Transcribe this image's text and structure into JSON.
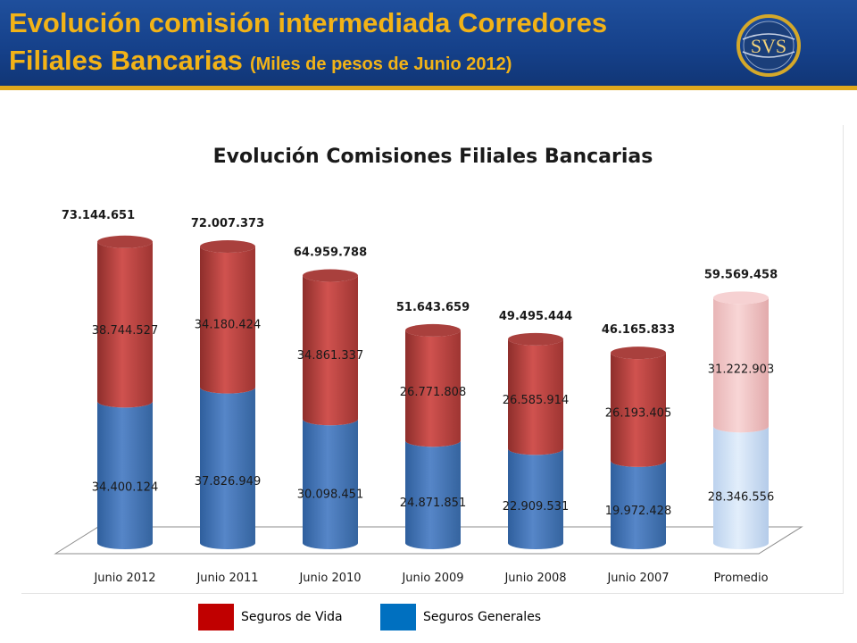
{
  "header": {
    "title_line1": "Evolución comisión intermediada Corredores",
    "title_line2": "Filiales Bancarias",
    "title_sub": "(Miles de pesos de Junio 2012)",
    "logo_text": "SVS"
  },
  "colors": {
    "header_bg": "#174490",
    "title": "#f2b317",
    "vida": "#c0504d",
    "generales": "#4f81bd",
    "vida_promedio": "#f2c3c4",
    "generales_promedio": "#cfe0f5"
  },
  "legend": [
    {
      "label": "Seguros de Vida",
      "color": "#c00000"
    },
    {
      "label": "Seguros Generales",
      "color": "#0070c0"
    }
  ],
  "chart_data": {
    "type": "bar",
    "stacked": true,
    "title": "Evolución Comisiones Filiales Bancarias",
    "categories": [
      "Junio 2012",
      "Junio 2011",
      "Junio 2010",
      "Junio 2009",
      "Junio 2008",
      "Junio 2007",
      "Promedio"
    ],
    "series": [
      {
        "name": "Seguros Generales",
        "values": [
          34400124,
          37826949,
          30098451,
          24871851,
          22909531,
          19972428,
          28346556
        ],
        "labels": [
          "34.400.124",
          "37.826.949",
          "30.098.451",
          "24.871.851",
          "22.909.531",
          "19.972.428",
          "28.346.556"
        ]
      },
      {
        "name": "Seguros de Vida",
        "values": [
          38744527,
          34180424,
          34861337,
          26771808,
          26585914,
          26193405,
          31222903
        ],
        "labels": [
          "38.744.527",
          "34.180.424",
          "34.861.337",
          "26.771.808",
          "26.585.914",
          "26.193.405",
          "31.222.903"
        ]
      }
    ],
    "totals": [
      73144651,
      72007373,
      64959788,
      51643659,
      49495444,
      46165833,
      59569458
    ],
    "total_labels": [
      "73.144.651",
      "72.007.373",
      "64.959.788",
      "51.643.659",
      "49.495.444",
      "46.165.833",
      "59.569.458"
    ],
    "highlight_category": "Promedio",
    "grid": false,
    "legend_position": "bottom"
  }
}
